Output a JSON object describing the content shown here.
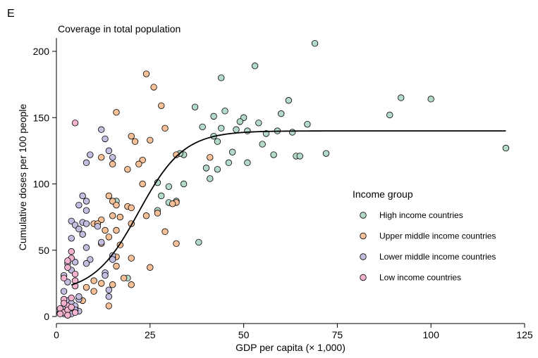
{
  "panel_letter": "E",
  "colors": {
    "High income countries": "#b3d9c8",
    "Upper middle income countries": "#f5bf97",
    "Lower middle income countries": "#c3bde0",
    "Low income countries": "#f3b3cf"
  },
  "chart_data": {
    "type": "scatter",
    "title": "",
    "subtitle": "Coverage in total population",
    "xlabel": "GDP per capita (× 1,000)",
    "ylabel": "Cumulative doses per 100 people",
    "xlim": [
      0,
      125
    ],
    "ylim": [
      0,
      210
    ],
    "xticks": [
      0,
      25,
      50,
      75,
      100,
      125
    ],
    "yticks": [
      0,
      50,
      100,
      150,
      200
    ],
    "grid": false,
    "legend": {
      "title": "Income group",
      "placement": "right"
    },
    "fit_curve": {
      "type": "logistic",
      "lower": 18,
      "upper": 140,
      "midpoint": 22,
      "scale": 6
    },
    "series": [
      {
        "name": "High income countries",
        "points": [
          [
            69,
            206
          ],
          [
            53,
            189
          ],
          [
            44,
            180
          ],
          [
            92,
            165
          ],
          [
            100,
            164
          ],
          [
            62,
            163
          ],
          [
            37,
            158
          ],
          [
            45,
            155
          ],
          [
            42,
            151
          ],
          [
            50,
            150
          ],
          [
            60,
            153
          ],
          [
            89,
            152
          ],
          [
            49,
            147
          ],
          [
            54,
            146
          ],
          [
            67,
            145
          ],
          [
            39,
            143
          ],
          [
            48,
            141
          ],
          [
            44,
            142
          ],
          [
            51,
            140
          ],
          [
            59,
            140
          ],
          [
            63,
            139
          ],
          [
            42,
            136
          ],
          [
            56,
            138
          ],
          [
            43,
            132
          ],
          [
            55,
            130
          ],
          [
            64,
            121
          ],
          [
            72,
            123
          ],
          [
            120,
            127
          ],
          [
            65,
            121
          ],
          [
            58,
            122
          ],
          [
            46,
            116
          ],
          [
            51,
            116
          ],
          [
            43,
            111
          ],
          [
            40,
            112
          ],
          [
            34,
            122
          ],
          [
            33,
            123
          ],
          [
            47,
            124
          ],
          [
            27,
            101
          ],
          [
            30,
            98
          ],
          [
            34,
            100
          ],
          [
            41,
            104
          ],
          [
            28,
            91
          ],
          [
            30,
            86
          ],
          [
            27,
            80
          ],
          [
            32,
            87
          ],
          [
            38,
            56
          ],
          [
            16,
            87
          ],
          [
            19,
            29
          ]
        ]
      },
      {
        "name": "Upper middle income countries",
        "points": [
          [
            24,
            183
          ],
          [
            26,
            173
          ],
          [
            28,
            159
          ],
          [
            16,
            154
          ],
          [
            29,
            142
          ],
          [
            20,
            136
          ],
          [
            25,
            133
          ],
          [
            21,
            132
          ],
          [
            32,
            122
          ],
          [
            23,
            118
          ],
          [
            41,
            120
          ],
          [
            22,
            115
          ],
          [
            19,
            111
          ],
          [
            15,
            115
          ],
          [
            12,
            120
          ],
          [
            23,
            100
          ],
          [
            14,
            91
          ],
          [
            19,
            83
          ],
          [
            15,
            87
          ],
          [
            20,
            82
          ],
          [
            16,
            84
          ],
          [
            12,
            73
          ],
          [
            10,
            70
          ],
          [
            17,
            75
          ],
          [
            11,
            70
          ],
          [
            13,
            65
          ],
          [
            32,
            86
          ],
          [
            27,
            78
          ],
          [
            31,
            85
          ],
          [
            24,
            76
          ],
          [
            20,
            70
          ],
          [
            15,
            76
          ],
          [
            16,
            65
          ],
          [
            29,
            64
          ],
          [
            14,
            60
          ],
          [
            12,
            55
          ],
          [
            32,
            55
          ],
          [
            17,
            54
          ],
          [
            16,
            45
          ],
          [
            15,
            44
          ],
          [
            20,
            44
          ],
          [
            25,
            37
          ],
          [
            16,
            38
          ],
          [
            10,
            27
          ],
          [
            12,
            25
          ],
          [
            8,
            22
          ],
          [
            10,
            19
          ],
          [
            15,
            24
          ],
          [
            20,
            24
          ],
          [
            14,
            8
          ],
          [
            18,
            29
          ],
          [
            7,
            12
          ]
        ]
      },
      {
        "name": "Lower middle income countries",
        "points": [
          [
            12,
            141
          ],
          [
            13,
            134
          ],
          [
            14,
            125
          ],
          [
            15,
            120
          ],
          [
            9,
            122
          ],
          [
            8,
            116
          ],
          [
            7,
            91
          ],
          [
            8,
            87
          ],
          [
            6,
            84
          ],
          [
            8,
            80
          ],
          [
            4,
            72
          ],
          [
            5,
            69
          ],
          [
            7,
            71
          ],
          [
            8,
            70
          ],
          [
            6,
            66
          ],
          [
            7,
            62
          ],
          [
            8,
            52
          ],
          [
            11,
            68
          ],
          [
            4,
            59
          ],
          [
            12,
            56
          ],
          [
            13,
            33
          ],
          [
            13,
            31
          ],
          [
            15,
            46
          ],
          [
            15,
            43
          ],
          [
            9,
            43
          ],
          [
            5,
            41
          ],
          [
            3,
            40
          ],
          [
            8,
            40
          ],
          [
            4,
            35
          ],
          [
            2,
            31
          ],
          [
            3,
            26
          ],
          [
            6,
            13
          ],
          [
            2,
            19
          ],
          [
            3,
            12
          ],
          [
            4,
            10
          ],
          [
            5,
            7
          ],
          [
            2,
            6
          ],
          [
            3,
            4
          ],
          [
            4,
            2
          ],
          [
            5,
            8
          ],
          [
            6,
            4
          ],
          [
            3,
            1
          ],
          [
            1,
            3
          ],
          [
            2,
            2
          ],
          [
            6,
            15
          ],
          [
            14,
            20
          ],
          [
            14,
            15
          ],
          [
            5,
            5
          ]
        ]
      },
      {
        "name": "Low income countries",
        "points": [
          [
            5,
            146
          ],
          [
            4,
            49
          ],
          [
            4,
            44
          ],
          [
            3,
            42
          ],
          [
            3,
            37
          ],
          [
            5,
            32
          ],
          [
            2,
            29
          ],
          [
            5,
            27
          ],
          [
            5,
            23
          ],
          [
            4,
            14
          ],
          [
            2,
            13
          ],
          [
            3,
            8
          ],
          [
            1,
            6
          ],
          [
            2,
            3
          ],
          [
            1,
            2
          ],
          [
            3,
            5
          ],
          [
            4,
            7
          ],
          [
            2,
            10
          ],
          [
            5,
            3
          ],
          [
            3,
            1
          ]
        ]
      }
    ]
  }
}
